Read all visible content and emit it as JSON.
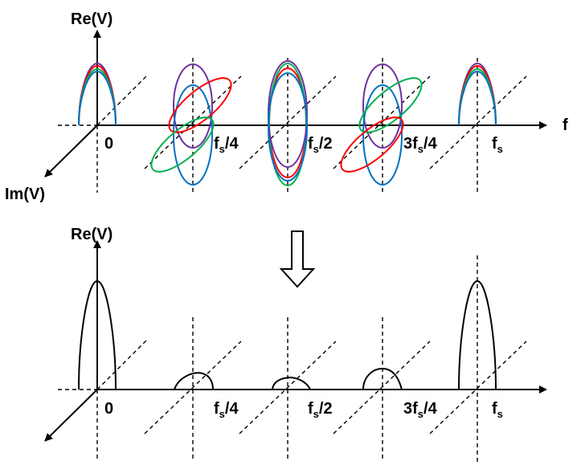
{
  "top_panel": {
    "y_axis_label": "Re(V)",
    "x_axis_label": "f",
    "depth_axis_label": "Im(V)",
    "ticks": [
      {
        "main": "0",
        "sub": "",
        "tail": ""
      },
      {
        "main": "f",
        "sub": "s",
        "tail": "/4"
      },
      {
        "main": "f",
        "sub": "s",
        "tail": "/2"
      },
      {
        "main": "3f",
        "sub": "s",
        "tail": "/4"
      },
      {
        "main": "f",
        "sub": "s",
        "tail": ""
      }
    ]
  },
  "bottom_panel": {
    "y_axis_label": "Re(V)",
    "ticks": [
      {
        "main": "0",
        "sub": "",
        "tail": ""
      },
      {
        "main": "f",
        "sub": "s",
        "tail": "/4"
      },
      {
        "main": "f",
        "sub": "s",
        "tail": "/2"
      },
      {
        "main": "3f",
        "sub": "s",
        "tail": "/4"
      },
      {
        "main": "f",
        "sub": "s",
        "tail": ""
      }
    ]
  },
  "colors": {
    "axis": "#000000",
    "purple": "#7030a0",
    "red": "#ff0000",
    "green": "#00b050",
    "blue": "#0070c0"
  }
}
